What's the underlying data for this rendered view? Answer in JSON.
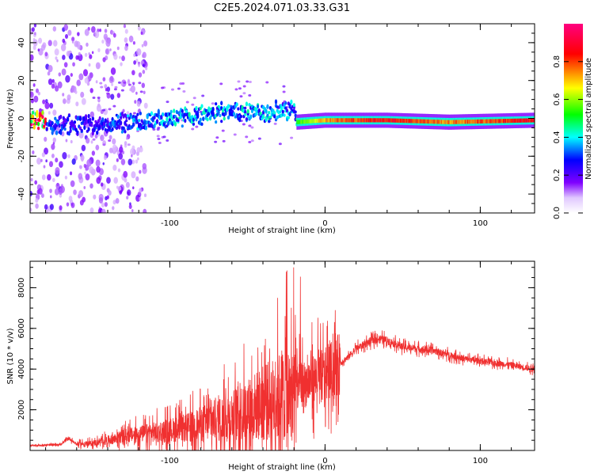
{
  "figure": {
    "title": "C2E5.2024.071.03.33.G31"
  },
  "chart_data": [
    {
      "type": "heatmap",
      "title": "",
      "xlabel": "Height of straight line (km)",
      "ylabel": "Frequency (Hz)",
      "xlim": [
        -190,
        135
      ],
      "ylim": [
        -50,
        50
      ],
      "xticks": [
        -100,
        0,
        100
      ],
      "yticks": [
        -40,
        -20,
        0,
        20,
        40
      ],
      "colorbar": {
        "label": "Normalized spectral amplitude",
        "range": [
          0,
          1
        ],
        "ticks": [
          0.0,
          0.2,
          0.4,
          0.6,
          0.8
        ],
        "colors": [
          "#ffffff",
          "#8000ff",
          "#0000ff",
          "#00ffff",
          "#00ff00",
          "#ffff00",
          "#ff0000",
          "#ff0080"
        ]
      },
      "ridge": [
        {
          "x": -180,
          "freq": -4,
          "amp": 0.35
        },
        {
          "x": -150,
          "freq": -3,
          "amp": 0.3
        },
        {
          "x": -120,
          "freq": -2,
          "amp": 0.4
        },
        {
          "x": -90,
          "freq": 1,
          "amp": 0.45
        },
        {
          "x": -60,
          "freq": 4,
          "amp": 0.45
        },
        {
          "x": -35,
          "freq": 3,
          "amp": 0.45
        },
        {
          "x": -20,
          "freq": 5,
          "amp": 0.4
        },
        {
          "x": -18,
          "freq": -2,
          "amp": 0.6
        },
        {
          "x": 0,
          "freq": -1,
          "amp": 0.8
        },
        {
          "x": 40,
          "freq": -1,
          "amp": 0.9
        },
        {
          "x": 80,
          "freq": -2,
          "amp": 0.8
        },
        {
          "x": 135,
          "freq": -1,
          "amp": 0.9
        }
      ]
    },
    {
      "type": "line",
      "title": "",
      "xlabel": "Height of straight line (km)",
      "ylabel": "SNR (10 * v/v)",
      "xlim": [
        -190,
        135
      ],
      "ylim": [
        0,
        9300
      ],
      "xticks": [
        -100,
        0,
        100
      ],
      "yticks": [
        2000,
        4000,
        6000,
        8000
      ],
      "color": "#f03030",
      "series": [
        {
          "x": [
            -190,
            -180,
            -170,
            -165,
            -160,
            -150,
            -140,
            -130,
            -120,
            -110,
            -100,
            -90,
            -80,
            -70,
            -60,
            -50,
            -40,
            -30,
            -25,
            -20,
            -15,
            -10,
            -5,
            0,
            5,
            10,
            15,
            20,
            25,
            30,
            35,
            40,
            50,
            60,
            70,
            80,
            90,
            100,
            110,
            120,
            135
          ],
          "y": [
            250,
            250,
            300,
            600,
            300,
            350,
            500,
            700,
            800,
            900,
            1000,
            1100,
            1300,
            1500,
            1700,
            2000,
            2300,
            2600,
            3000,
            3000,
            3200,
            3400,
            3600,
            3700,
            4000,
            4300,
            4600,
            5000,
            5200,
            5400,
            5500,
            5400,
            5100,
            5000,
            4900,
            4700,
            4500,
            4400,
            4300,
            4200,
            4000
          ]
        }
      ]
    }
  ]
}
